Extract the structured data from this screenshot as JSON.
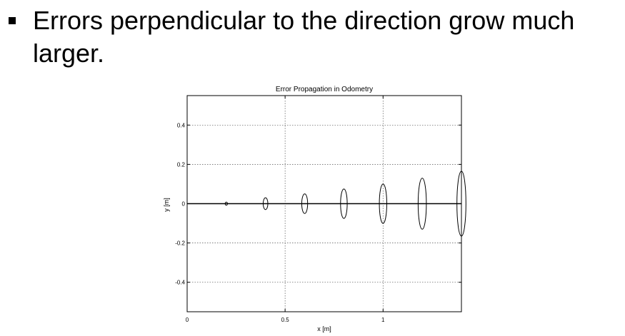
{
  "slide": {
    "bullet_text": "Errors perpendicular to the direction grow much larger."
  },
  "chart_data": {
    "type": "scatter",
    "title": "Error Propagation in Odometry",
    "xlabel": "x [m]",
    "ylabel": "y [m]",
    "xlim": [
      0,
      1.4
    ],
    "ylim": [
      -0.55,
      0.55
    ],
    "x_ticks": [
      0,
      0.5,
      1
    ],
    "x_tick_labels": [
      "0",
      "0.5",
      "1"
    ],
    "y_ticks": [
      0.4,
      0.2,
      0,
      -0.2,
      -0.4
    ],
    "y_tick_labels": [
      "0.4",
      "0.2",
      "0",
      "-0.2",
      "-0.4"
    ],
    "grid": true,
    "path": {
      "x": [
        0,
        1.4
      ],
      "y": [
        0,
        0
      ]
    },
    "ellipses": [
      {
        "x": 0.2,
        "y": 0,
        "semi_x": 0.006,
        "semi_y": 0.008
      },
      {
        "x": 0.4,
        "y": 0,
        "semi_x": 0.012,
        "semi_y": 0.03
      },
      {
        "x": 0.6,
        "y": 0,
        "semi_x": 0.015,
        "semi_y": 0.05
      },
      {
        "x": 0.8,
        "y": 0,
        "semi_x": 0.017,
        "semi_y": 0.075
      },
      {
        "x": 1.0,
        "y": 0,
        "semi_x": 0.019,
        "semi_y": 0.1
      },
      {
        "x": 1.2,
        "y": 0,
        "semi_x": 0.021,
        "semi_y": 0.13
      },
      {
        "x": 1.4,
        "y": 0,
        "semi_x": 0.023,
        "semi_y": 0.165
      }
    ]
  }
}
